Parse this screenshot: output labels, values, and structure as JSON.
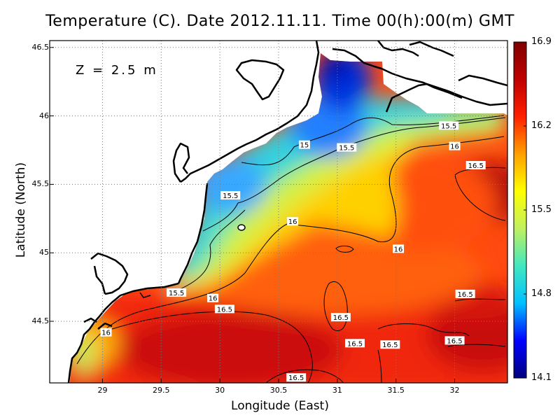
{
  "title": "Temperature (C). Date 2012.11.11. Time 00(h):00(m) GMT",
  "depth_label": "Z = 2.5 m",
  "axes": {
    "xlabel": "Longitude (East)",
    "ylabel": "Latitude (North)",
    "x_ticks": [
      "29",
      "29.5",
      "30",
      "30.5",
      "31",
      "31.5",
      "32"
    ],
    "x_tick_values": [
      29,
      29.5,
      30,
      30.5,
      31,
      31.5,
      32
    ],
    "y_ticks": [
      "46.5",
      "46",
      "45.5",
      "45",
      "44.5"
    ],
    "y_tick_values": [
      46.5,
      46,
      45.5,
      45,
      44.5
    ],
    "x_range": [
      28.55,
      32.45
    ],
    "y_range": [
      44.05,
      46.55
    ],
    "grid": "dotted"
  },
  "colorbar": {
    "ticks": [
      "16.9",
      "16.2",
      "15.5",
      "14.8",
      "14.1"
    ],
    "min": 14.1,
    "max": 16.9,
    "colors": [
      "#000080",
      "#0000ff",
      "#00c0ff",
      "#40e8c0",
      "#c0f060",
      "#ffff00",
      "#ffa000",
      "#ff2000",
      "#c00000",
      "#800000"
    ]
  },
  "contour_labels": [
    {
      "text": "15.5",
      "lon": 31.95,
      "lat": 45.93
    },
    {
      "text": "15",
      "lon": 30.72,
      "lat": 45.79
    },
    {
      "text": "15.5",
      "lon": 31.08,
      "lat": 45.77
    },
    {
      "text": "16",
      "lon": 32.0,
      "lat": 45.78
    },
    {
      "text": "16.5",
      "lon": 32.18,
      "lat": 45.64
    },
    {
      "text": "15.5",
      "lon": 30.09,
      "lat": 45.42
    },
    {
      "text": "16",
      "lon": 30.62,
      "lat": 45.23
    },
    {
      "text": "16",
      "lon": 31.52,
      "lat": 45.03
    },
    {
      "text": "15.5",
      "lon": 29.63,
      "lat": 44.71
    },
    {
      "text": "16",
      "lon": 29.94,
      "lat": 44.67
    },
    {
      "text": "16.5",
      "lon": 30.04,
      "lat": 44.59
    },
    {
      "text": "16.5",
      "lon": 32.09,
      "lat": 44.7
    },
    {
      "text": "16.5",
      "lon": 31.03,
      "lat": 44.53
    },
    {
      "text": "16",
      "lon": 29.03,
      "lat": 44.42
    },
    {
      "text": "16.5",
      "lon": 31.15,
      "lat": 44.34
    },
    {
      "text": "16.5",
      "lon": 31.45,
      "lat": 44.33
    },
    {
      "text": "16.5",
      "lon": 32.0,
      "lat": 44.36
    },
    {
      "text": "16.5",
      "lon": 30.65,
      "lat": 44.09
    }
  ]
}
